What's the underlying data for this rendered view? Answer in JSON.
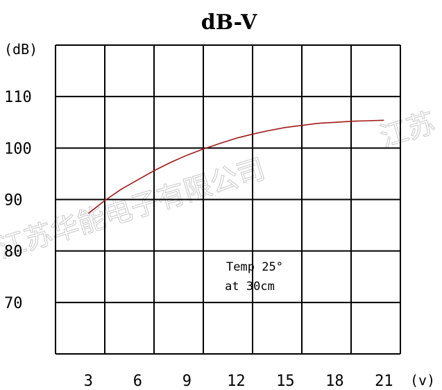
{
  "chart_data": {
    "type": "line",
    "title": "dB-V",
    "ylabel": "(dB)",
    "xlabel": "(v)",
    "xlim": [
      1,
      22
    ],
    "ylim": [
      60,
      120
    ],
    "x_ticks": [
      3,
      6,
      9,
      12,
      15,
      18,
      21
    ],
    "y_ticks": [
      70,
      80,
      90,
      100,
      110
    ],
    "x_gridlines": [
      1,
      4,
      7,
      10,
      13,
      16,
      19,
      22
    ],
    "y_gridlines": [
      60,
      70,
      80,
      90,
      100,
      110,
      120
    ],
    "grid": true,
    "series": [
      {
        "color": "#a01818",
        "x": [
          3,
          4,
          5,
          6,
          7,
          8,
          9,
          10,
          11,
          12,
          13,
          14,
          15,
          16,
          17,
          18,
          19,
          20,
          21
        ],
        "y": [
          87.3,
          89.8,
          92.0,
          93.8,
          95.6,
          97.2,
          98.6,
          99.8,
          100.9,
          101.9,
          102.7,
          103.4,
          104.0,
          104.4,
          104.8,
          105.0,
          105.2,
          105.3,
          105.4
        ]
      }
    ],
    "annotation": [
      "Temp 25°",
      "at 30cm"
    ]
  },
  "watermark": [
    "江苏华能电子有限公司",
    "江苏"
  ]
}
